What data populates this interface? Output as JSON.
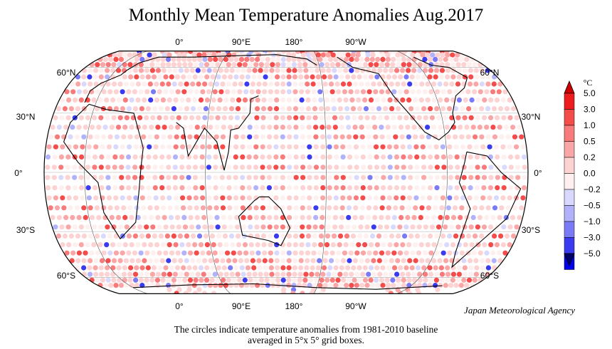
{
  "title": "Monthly Mean Temperature Anomalies Aug.2017",
  "credit": "Japan Meteorological Agency",
  "caption": {
    "line1": "The circles indicate temperature anomalies from 1981-2010 baseline",
    "line2": "averaged in 5°x 5° grid boxes."
  },
  "map": {
    "projection": "Robinson-like, centered 150°E",
    "longitude_labels": [
      "0°",
      "90°E",
      "180°",
      "90°W"
    ],
    "latitude_labels_left": [
      "60°N",
      "30°N",
      "0°",
      "30°S",
      "60°S"
    ],
    "latitude_labels_right": [
      "60°N",
      "30°N",
      "0°",
      "30°S",
      "60°S"
    ],
    "grid_box_degrees": 5,
    "colors": {
      "warm_strong": "#e00000",
      "warm_light": "#ffc8c8",
      "neutral": "#ffeaea",
      "cool_light": "#c8c8ff",
      "cool_strong": "#0000e0"
    }
  },
  "legend": {
    "unit": "°C",
    "levels": [
      "5.0",
      "3.0",
      "1.0",
      "0.5",
      "0.2",
      "0.0",
      "−0.2",
      "−0.5",
      "−1.0",
      "−3.0",
      "−5.0"
    ],
    "colors": [
      "#ee1c1c",
      "#f44b4b",
      "#f87a7a",
      "#fba6a6",
      "#fdd2d2",
      "#fff0f0",
      "#d9d9fd",
      "#b2b2fb",
      "#7a7af7",
      "#3a3af1",
      "#0000ee"
    ],
    "top_arrow_color": "#cc0000",
    "bottom_arrow_color": "#000066"
  }
}
